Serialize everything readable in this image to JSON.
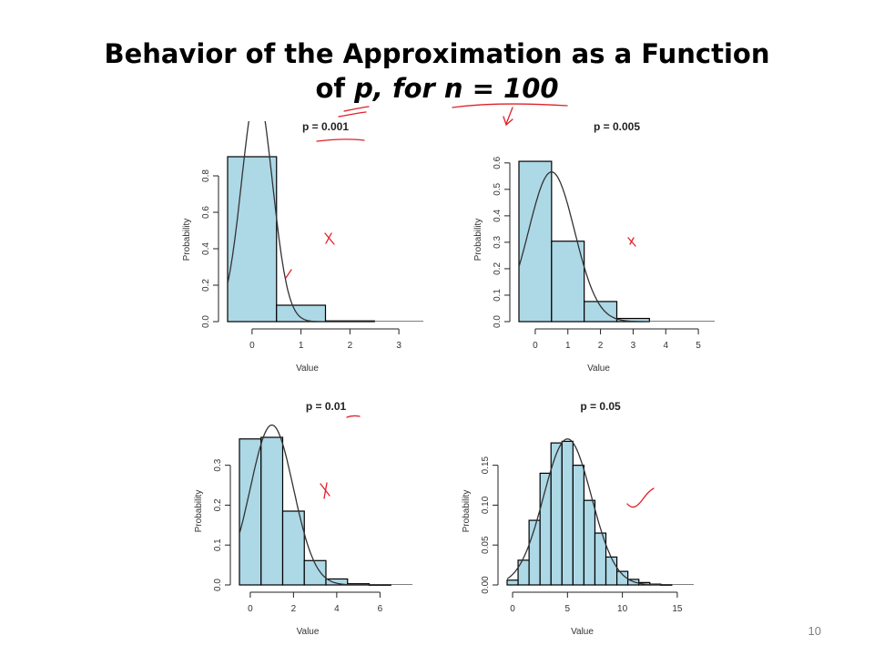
{
  "slide": {
    "title_line1": "Behavior of the Approximation as a Function",
    "title_line2_prefix": "of ",
    "title_line2_em": "p, for n = 100",
    "page_number": "10",
    "bar_color": "#add8e6",
    "curve_color": "#333333"
  },
  "chart_data": [
    {
      "type": "bar",
      "title": "p = 0.001",
      "xlabel": "Value",
      "ylabel": "Probability",
      "x_ticks": [
        "0",
        "1",
        "2",
        "3"
      ],
      "y_ticks": [
        "0.0",
        "0.2",
        "0.4",
        "0.6",
        "0.8"
      ],
      "xlim": [
        -0.5,
        3.5
      ],
      "ylim": [
        0,
        0.9
      ],
      "categories": [
        0,
        1,
        2
      ],
      "values": [
        0.905,
        0.09,
        0.004
      ],
      "curve": {
        "mean": 0.1,
        "sd": 0.316
      }
    },
    {
      "type": "bar",
      "title": "p = 0.005",
      "xlabel": "Value",
      "ylabel": "Probability",
      "x_ticks": [
        "0",
        "1",
        "2",
        "3",
        "4",
        "5"
      ],
      "y_ticks": [
        "0.0",
        "0.1",
        "0.2",
        "0.3",
        "0.4",
        "0.5",
        "0.6"
      ],
      "xlim": [
        -0.5,
        5.5
      ],
      "ylim": [
        0,
        0.62
      ],
      "categories": [
        0,
        1,
        2,
        3
      ],
      "values": [
        0.606,
        0.304,
        0.076,
        0.012
      ],
      "curve": {
        "mean": 0.5,
        "sd": 0.705
      }
    },
    {
      "type": "bar",
      "title": "p = 0.01",
      "xlabel": "Value",
      "ylabel": "Probability",
      "x_ticks": [
        "0",
        "2",
        "4",
        "6"
      ],
      "y_ticks": [
        "0.0",
        "0.1",
        "0.2",
        "0.3"
      ],
      "xlim": [
        -0.5,
        7.5
      ],
      "ylim": [
        0,
        0.37
      ],
      "categories": [
        0,
        1,
        2,
        3,
        4,
        5,
        6
      ],
      "values": [
        0.366,
        0.37,
        0.185,
        0.061,
        0.015,
        0.003,
        0.0005
      ],
      "curve": {
        "mean": 1.0,
        "sd": 0.995
      }
    },
    {
      "type": "bar",
      "title": "p = 0.05",
      "xlabel": "Value",
      "ylabel": "Probability",
      "x_ticks": [
        "0",
        "5",
        "10",
        "15"
      ],
      "y_ticks": [
        "0.00",
        "0.05",
        "0.10",
        "0.15"
      ],
      "xlim": [
        -0.5,
        16.5
      ],
      "ylim": [
        0,
        0.185
      ],
      "categories": [
        0,
        1,
        2,
        3,
        4,
        5,
        6,
        7,
        8,
        9,
        10,
        11,
        12,
        13,
        14
      ],
      "values": [
        0.006,
        0.031,
        0.081,
        0.14,
        0.178,
        0.18,
        0.15,
        0.106,
        0.065,
        0.035,
        0.017,
        0.007,
        0.003,
        0.001,
        0.0003
      ],
      "curve": {
        "mean": 5.0,
        "sd": 2.18
      }
    }
  ]
}
